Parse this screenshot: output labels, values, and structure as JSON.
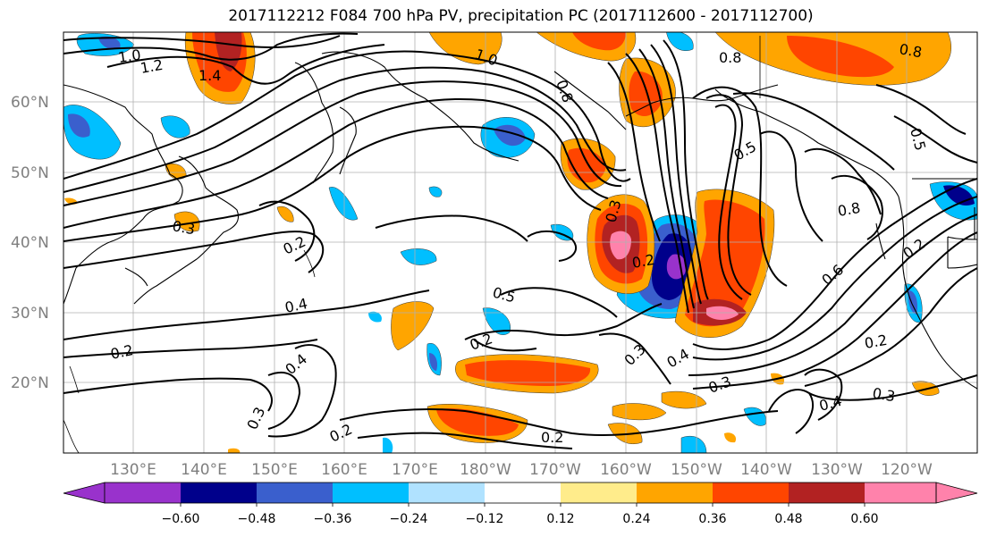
{
  "title": "2017112212 F084 700 hPa PV, precipitation PC (2017112600 - 2017112700)",
  "lat_labels": [
    "60°N",
    "50°N",
    "40°N",
    "30°N",
    "20°N"
  ],
  "lon_labels": [
    "130°E",
    "140°E",
    "150°E",
    "160°E",
    "170°E",
    "180°W",
    "170°W",
    "160°W",
    "150°W",
    "140°W",
    "130°W",
    "120°W"
  ],
  "contour_labels": [
    "1.0",
    "1.2",
    "1.4",
    "1.0",
    "0.8",
    "0.8",
    "0.5",
    "0.5",
    "0.2",
    "0.2",
    "0.3",
    "0.4",
    "0.2",
    "0.4",
    "0.2",
    "0.3",
    "0.5",
    "0.2",
    "0.3",
    "0.4",
    "0.3",
    "0.3",
    "0.4",
    "0.3",
    "0.6",
    "0.8",
    "0.2",
    "0.2",
    "0.2",
    "0.8"
  ],
  "colorbar": {
    "ticks": [
      "−0.60",
      "−0.48",
      "−0.36",
      "−0.24",
      "−0.12",
      "0.12",
      "0.24",
      "0.36",
      "0.48",
      "0.60"
    ],
    "colors": [
      "#9932CC",
      "#00008B",
      "#3A5FCD",
      "#00BFFF",
      "#B0E2FF",
      "#FFFFFF",
      "#FFEC8B",
      "#FFA500",
      "#FF4500",
      "#B22222",
      "#FF82AB"
    ]
  },
  "chart_data": {
    "type": "map",
    "title": "2017112212 F084 700 hPa PV, precipitation PC (2017112600 - 2017112700)",
    "lat_range": [
      10,
      70
    ],
    "lon_range_degE": [
      120,
      250
    ],
    "colorbar_levels": [
      -0.6,
      -0.48,
      -0.36,
      -0.24,
      -0.12,
      0.12,
      0.24,
      0.36,
      0.48,
      0.6
    ],
    "contour_levels_shown": [
      0.2,
      0.3,
      0.4,
      0.5,
      0.6,
      0.8,
      1.0,
      1.2,
      1.4
    ]
  }
}
